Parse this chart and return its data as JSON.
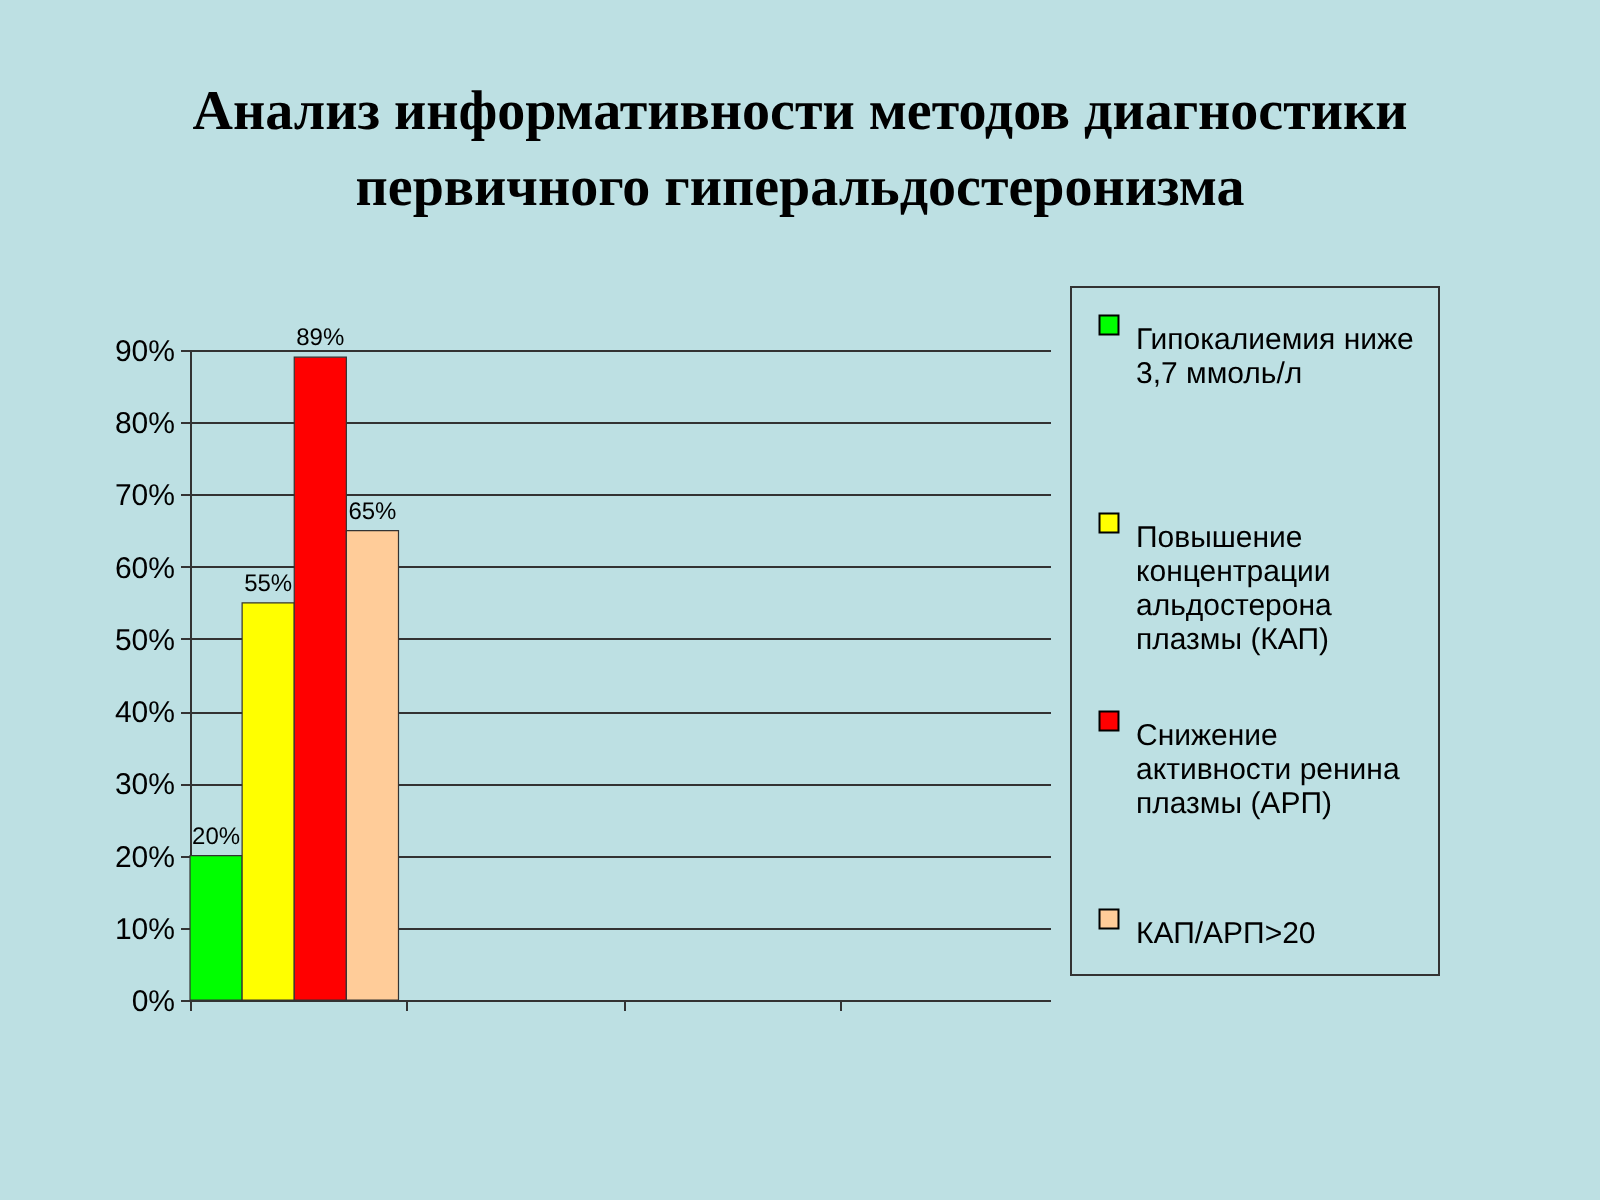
{
  "chart_data": {
    "type": "bar",
    "title": "Анализ информативности методов диагностики первичного гиперальдостеронизма",
    "categories": [
      null,
      null,
      null,
      null
    ],
    "series": [
      {
        "name": "Гипокалиемия ниже 3,7 ммоль/л",
        "color": "#00ff00",
        "values": [
          20,
          null,
          null,
          null
        ],
        "value_labels": [
          "20%",
          null,
          null,
          null
        ]
      },
      {
        "name": "Повышение концентрации альдостерона плазмы (КАП)",
        "color": "#ffff00",
        "values": [
          55,
          null,
          null,
          null
        ],
        "value_labels": [
          "55%",
          null,
          null,
          null
        ]
      },
      {
        "name": "Снижение активности ренина плазмы (АРП)",
        "color": "#ff0000",
        "values": [
          89,
          null,
          null,
          null
        ],
        "value_labels": [
          "89%",
          null,
          null,
          null
        ]
      },
      {
        "name": "КАП/АРП>20",
        "color": "#ffcc99",
        "values": [
          65,
          null,
          null,
          null
        ],
        "value_labels": [
          "65%",
          null,
          null,
          null
        ]
      }
    ],
    "ylim": [
      0,
      90
    ],
    "yticks": [
      {
        "value": 0,
        "label": "0%"
      },
      {
        "value": 10,
        "label": "10%"
      },
      {
        "value": 20,
        "label": "20%"
      },
      {
        "value": 30,
        "label": "30%"
      },
      {
        "value": 40,
        "label": "40%"
      },
      {
        "value": 50,
        "label": "50%"
      },
      {
        "value": 60,
        "label": "60%"
      },
      {
        "value": 70,
        "label": "70%"
      },
      {
        "value": 80,
        "label": "80%"
      },
      {
        "value": 90,
        "label": "90%"
      }
    ],
    "grid": "y",
    "legend": "right",
    "tick_labels": "y"
  }
}
